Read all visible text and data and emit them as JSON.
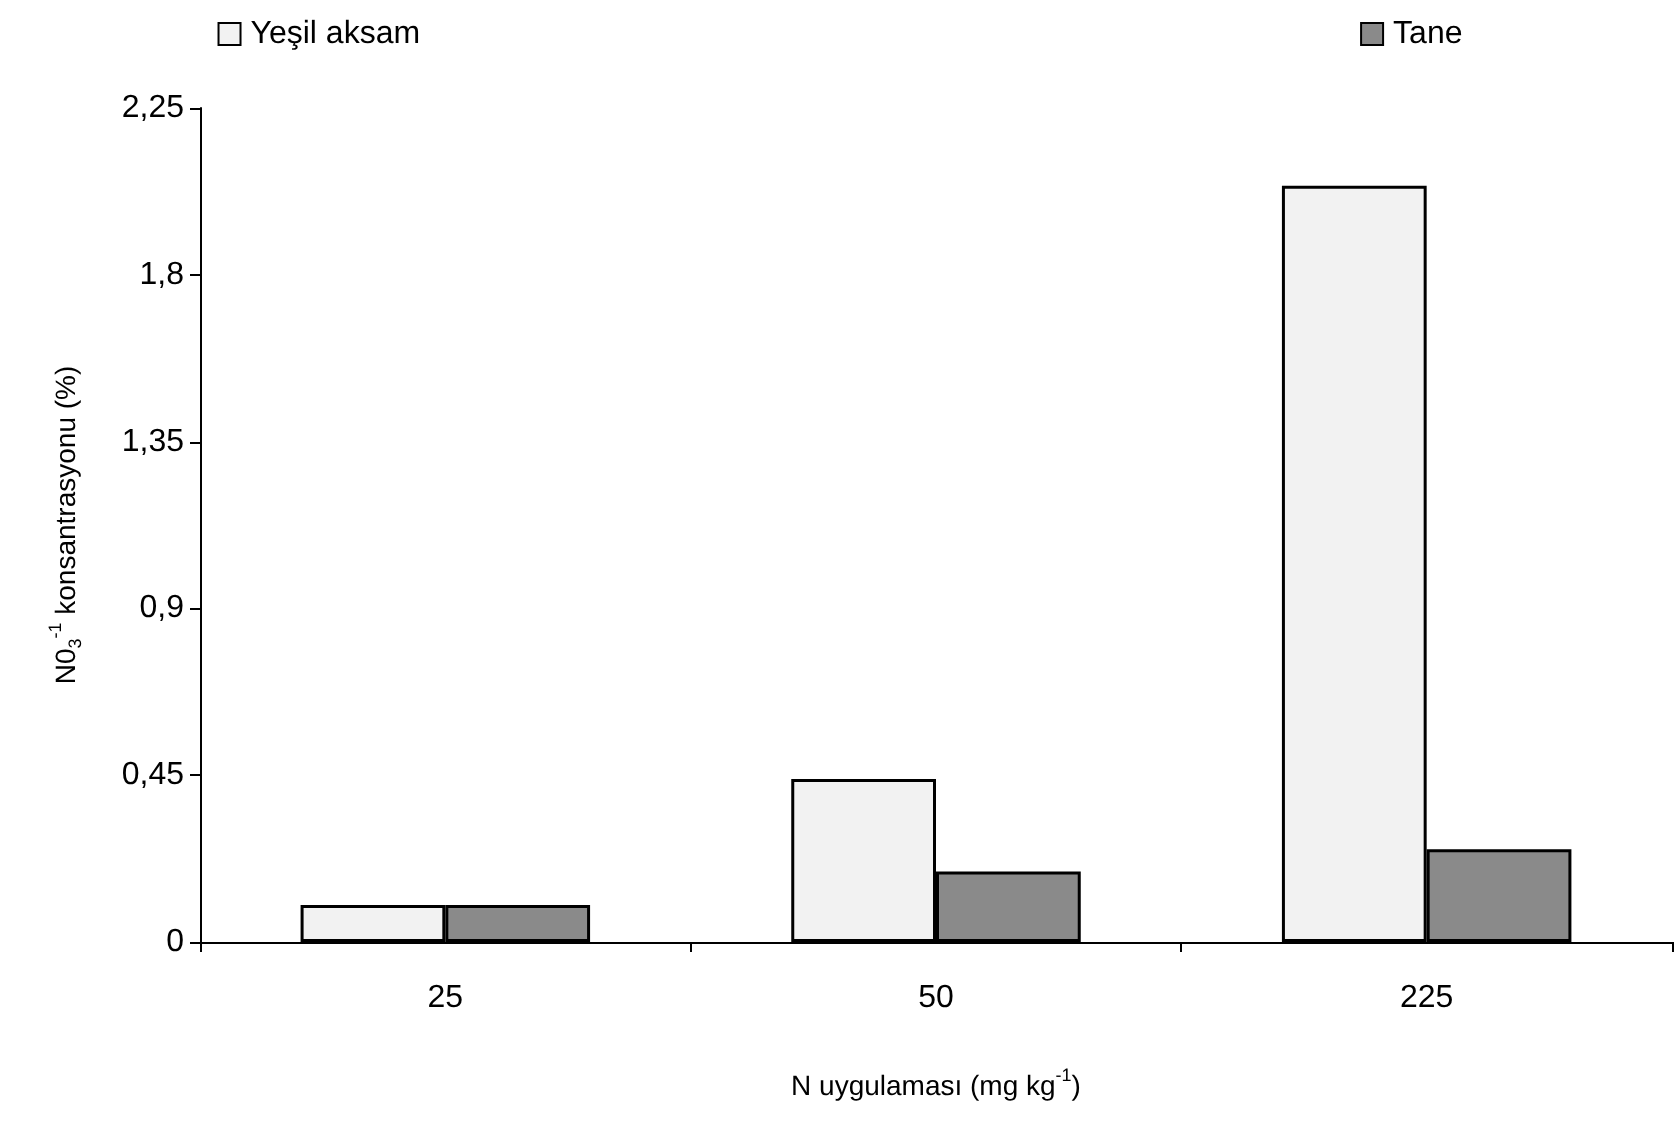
{
  "chart_data": {
    "type": "bar",
    "xlabel": "N uygulaması (mg kg$^{-1}$)",
    "ylabel": "N0$_{3}$$^{-1}$ konsantrasyonu (%)",
    "categories": [
      "25",
      "50",
      "225"
    ],
    "series": [
      {
        "name": "Yeşil aksam",
        "color": "#f2f2f2",
        "values": [
          0.1,
          0.44,
          2.04
        ]
      },
      {
        "name": "Tane",
        "color": "#8a8a8a",
        "values": [
          0.1,
          0.19,
          0.25
        ]
      }
    ],
    "ylim": [
      0,
      2.25
    ],
    "yticks": [
      0,
      {
        "value": 0.45,
        "label": "0,45"
      },
      {
        "value": 0.9,
        "label": "0,9"
      },
      {
        "value": 1.35,
        "label": "1,35"
      },
      {
        "value": 1.8,
        "label": "1,8"
      },
      {
        "value": 2.25,
        "label": "2,25"
      }
    ],
    "grid": false,
    "legend": "top"
  }
}
